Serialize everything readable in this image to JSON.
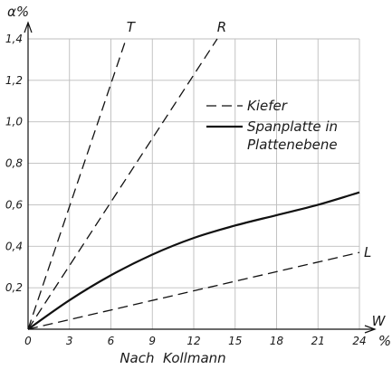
{
  "chart_data": {
    "type": "line",
    "title": "",
    "xlabel_letter": "W",
    "xlabel_unit": "%",
    "ylabel": "α%",
    "source_note": "Nach  Kollmann",
    "xlim": [
      0,
      24
    ],
    "ylim": [
      0,
      1.4
    ],
    "x_ticks": [
      "0",
      "3",
      "6",
      "9",
      "12",
      "15",
      "18",
      "21",
      "24"
    ],
    "y_ticks": [
      "0,2",
      "0,4",
      "0,6",
      "0,8",
      "1,0",
      "1,2",
      "1,4"
    ],
    "grid": true,
    "legend_position": "upper right",
    "legend": [
      {
        "label": "Kiefer",
        "style": "dashed"
      },
      {
        "label": "Spanplatte in\nPlattenebene",
        "style": "solid"
      }
    ],
    "series": [
      {
        "name": "T",
        "group": "Kiefer",
        "style": "dashed",
        "x": [
          0,
          7.1
        ],
        "y": [
          0,
          1.4
        ]
      },
      {
        "name": "R",
        "group": "Kiefer",
        "style": "dashed",
        "x": [
          0,
          13.7
        ],
        "y": [
          0,
          1.4
        ]
      },
      {
        "name": "L",
        "group": "Kiefer",
        "style": "dashed",
        "x": [
          0,
          24
        ],
        "y": [
          0,
          0.37
        ]
      },
      {
        "name": "Spanplatte in Plattenebene",
        "style": "solid",
        "x": [
          0,
          3,
          6,
          9,
          12,
          15,
          18,
          21,
          24
        ],
        "y": [
          0,
          0.14,
          0.26,
          0.36,
          0.44,
          0.5,
          0.55,
          0.6,
          0.66
        ]
      }
    ]
  }
}
